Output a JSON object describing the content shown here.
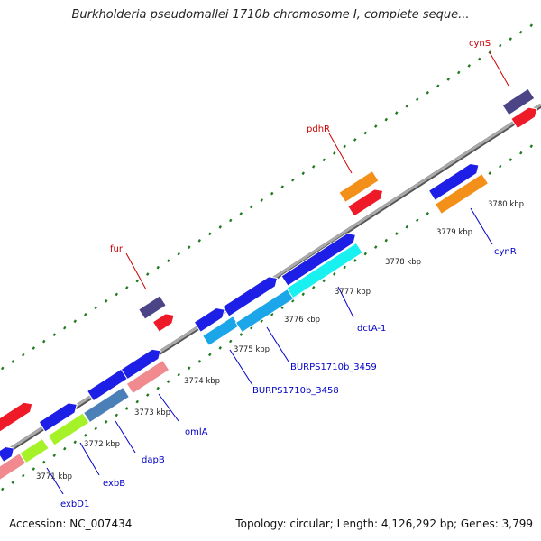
{
  "title": "Burkholderia pseudomallei 1710b chromosome I, complete seque...",
  "footer": {
    "accession": "Accession: NC_007434",
    "topology": "Topology: circular; Length: 4,126,292 bp; Genes: 3,799"
  },
  "colors": {
    "backbone": "#8a8a8a",
    "tick": "#1f7a1f",
    "feature_label": "#0000c8",
    "highlight_label": "#cc0000",
    "leader_blue": "#0000cc",
    "leader_red": "#cc0000"
  },
  "scale_labels": [
    "3771 kbp",
    "3772 kbp",
    "3773 kbp",
    "3774 kbp",
    "3775 kbp",
    "3776 kbp",
    "3777 kbp",
    "3778 kbp",
    "3779 kbp",
    "3780 kbp"
  ],
  "gene_labels": [
    {
      "name": "exbD1",
      "color": "blue"
    },
    {
      "name": "exbB",
      "color": "blue"
    },
    {
      "name": "dapB",
      "color": "blue"
    },
    {
      "name": "omlA",
      "color": "blue"
    },
    {
      "name": "BURPS1710b_3458",
      "color": "blue"
    },
    {
      "name": "BURPS1710b_3459",
      "color": "blue"
    },
    {
      "name": "dctA-1",
      "color": "blue"
    },
    {
      "name": "cynR",
      "color": "blue"
    },
    {
      "name": "fur",
      "color": "red"
    },
    {
      "name": "pdhR",
      "color": "red"
    },
    {
      "name": "cynS",
      "color": "red"
    }
  ]
}
